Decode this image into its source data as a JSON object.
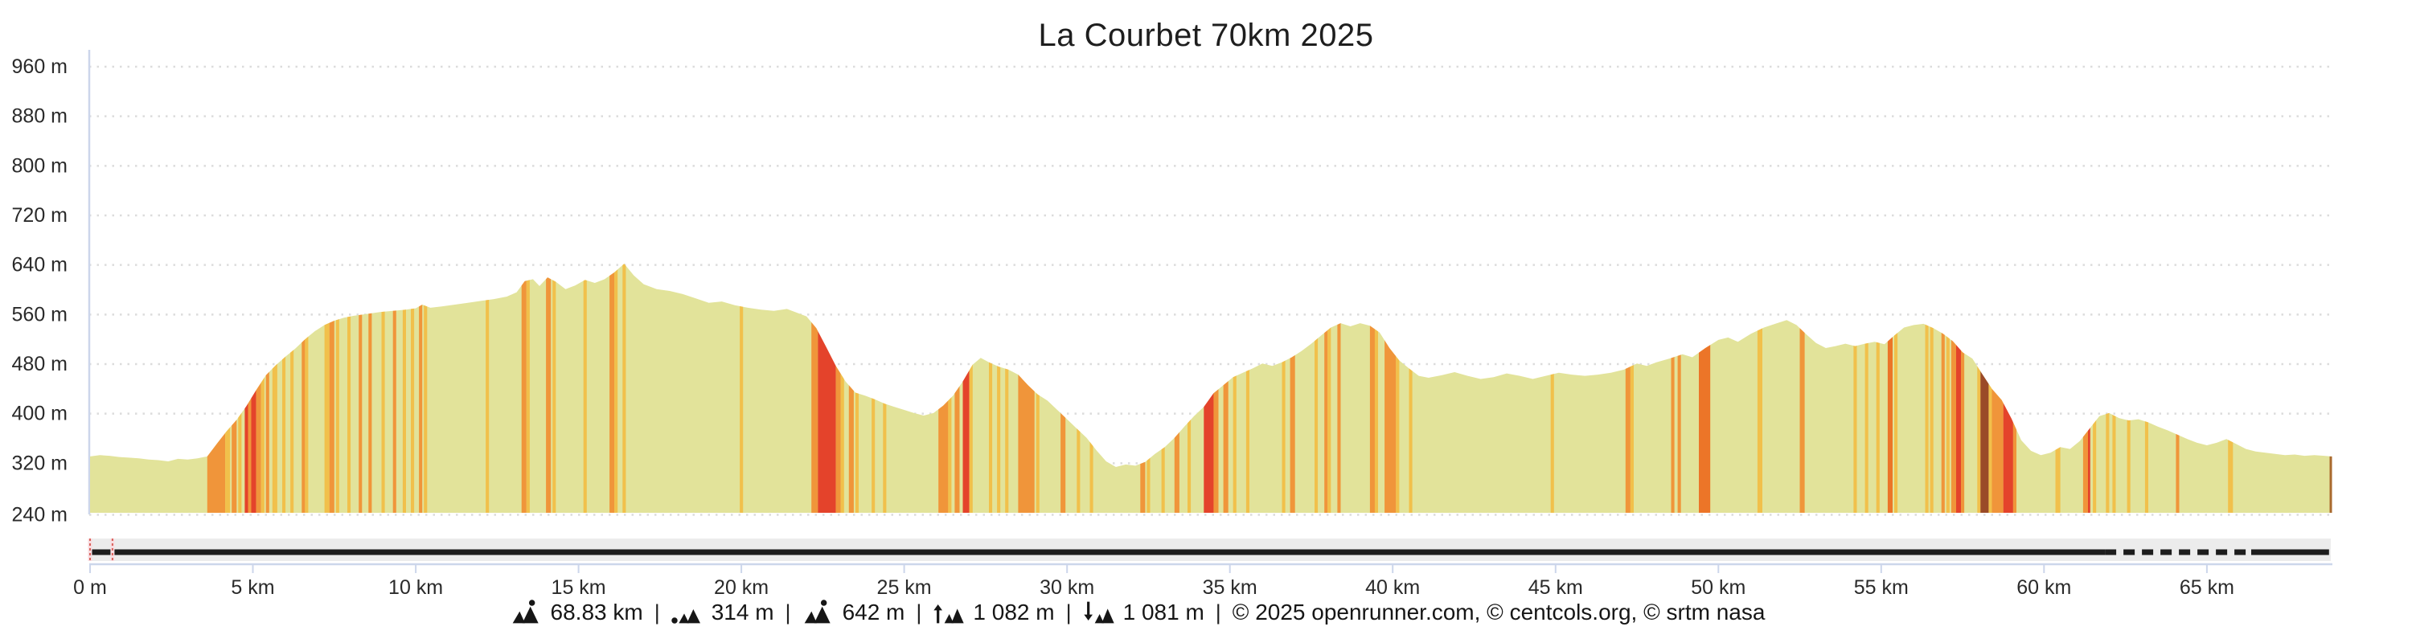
{
  "header": {
    "title": "La Courbet 70km 2025"
  },
  "chart_data": {
    "type": "area",
    "title": "La Courbet 70km 2025",
    "xlabel": "distance",
    "ylabel": "elevation",
    "x_unit": "km",
    "y_unit": "m",
    "x_range": [
      0,
      68.83
    ],
    "y_range": [
      240,
      960
    ],
    "grid": "horizontal-dotted",
    "legend": "none",
    "y_ticks": [
      {
        "value": 960,
        "label": "960 m"
      },
      {
        "value": 880,
        "label": "880 m"
      },
      {
        "value": 800,
        "label": "800 m"
      },
      {
        "value": 720,
        "label": "720 m"
      },
      {
        "value": 640,
        "label": "640 m"
      },
      {
        "value": 560,
        "label": "560 m"
      },
      {
        "value": 480,
        "label": "480 m"
      },
      {
        "value": 400,
        "label": "400 m"
      },
      {
        "value": 320,
        "label": "320 m"
      },
      {
        "value": 240,
        "label": "240 m"
      }
    ],
    "x_ticks": [
      {
        "value": 0,
        "label": "0 m"
      },
      {
        "value": 5,
        "label": "5 km"
      },
      {
        "value": 10,
        "label": "10 km"
      },
      {
        "value": 15,
        "label": "15 km"
      },
      {
        "value": 20,
        "label": "20 km"
      },
      {
        "value": 25,
        "label": "25 km"
      },
      {
        "value": 30,
        "label": "30 km"
      },
      {
        "value": 35,
        "label": "35 km"
      },
      {
        "value": 40,
        "label": "40 km"
      },
      {
        "value": 45,
        "label": "45 km"
      },
      {
        "value": 50,
        "label": "50 km"
      },
      {
        "value": 55,
        "label": "55 km"
      },
      {
        "value": 60,
        "label": "60 km"
      },
      {
        "value": 65,
        "label": "65 km"
      }
    ],
    "colors": {
      "area": "#e2e39a",
      "grid": "#dcdcdc",
      "axis": "#ccd6eb",
      "text": "#2a2a2a",
      "slope_amber": "#f1c04b",
      "slope_orange": "#f0953a",
      "slope_deep_orange": "#ec7528",
      "slope_red": "#e4432b",
      "slope_maroon": "#9a4a28",
      "navigator_track": "#ececec",
      "navigator_line": "#1d1d1d",
      "marker_pink": "#f8dde1",
      "marker_red": "#d9625c",
      "end_line": "#a96a2e"
    },
    "profile": [
      [
        0,
        331
      ],
      [
        0.3,
        333
      ],
      [
        0.6,
        332
      ],
      [
        0.9,
        330
      ],
      [
        1.2,
        329
      ],
      [
        1.5,
        328
      ],
      [
        1.8,
        326
      ],
      [
        2.1,
        325
      ],
      [
        2.4,
        323
      ],
      [
        2.7,
        327
      ],
      [
        3.0,
        326
      ],
      [
        3.3,
        328
      ],
      [
        3.6,
        331
      ],
      [
        3.9,
        352
      ],
      [
        4.2,
        372
      ],
      [
        4.5,
        390
      ],
      [
        4.8,
        412
      ],
      [
        5.1,
        438
      ],
      [
        5.4,
        462
      ],
      [
        5.7,
        478
      ],
      [
        6.0,
        492
      ],
      [
        6.3,
        505
      ],
      [
        6.6,
        520
      ],
      [
        6.9,
        533
      ],
      [
        7.2,
        543
      ],
      [
        7.5,
        550
      ],
      [
        7.8,
        555
      ],
      [
        8.1,
        558
      ],
      [
        8.5,
        561
      ],
      [
        8.9,
        564
      ],
      [
        9.3,
        566
      ],
      [
        9.7,
        568
      ],
      [
        10.0,
        570
      ],
      [
        10.2,
        576
      ],
      [
        10.45,
        571
      ],
      [
        10.8,
        573
      ],
      [
        11.2,
        576
      ],
      [
        11.6,
        579
      ],
      [
        12.0,
        582
      ],
      [
        12.4,
        585
      ],
      [
        12.8,
        589
      ],
      [
        13.1,
        596
      ],
      [
        13.35,
        614
      ],
      [
        13.6,
        617
      ],
      [
        13.8,
        606
      ],
      [
        14.05,
        620
      ],
      [
        14.3,
        613
      ],
      [
        14.6,
        601
      ],
      [
        14.9,
        607
      ],
      [
        15.2,
        616
      ],
      [
        15.5,
        611
      ],
      [
        15.8,
        617
      ],
      [
        16.1,
        628
      ],
      [
        16.4,
        642
      ],
      [
        16.7,
        623
      ],
      [
        17.0,
        609
      ],
      [
        17.4,
        601
      ],
      [
        17.8,
        598
      ],
      [
        18.2,
        593
      ],
      [
        18.6,
        586
      ],
      [
        19.0,
        579
      ],
      [
        19.4,
        581
      ],
      [
        19.8,
        575
      ],
      [
        20.2,
        571
      ],
      [
        20.6,
        568
      ],
      [
        21.0,
        566
      ],
      [
        21.4,
        569
      ],
      [
        21.7,
        563
      ],
      [
        22.0,
        557
      ],
      [
        22.3,
        538
      ],
      [
        22.6,
        508
      ],
      [
        22.9,
        477
      ],
      [
        23.2,
        452
      ],
      [
        23.5,
        434
      ],
      [
        23.8,
        429
      ],
      [
        24.1,
        423
      ],
      [
        24.4,
        416
      ],
      [
        24.7,
        411
      ],
      [
        25.0,
        406
      ],
      [
        25.3,
        401
      ],
      [
        25.6,
        397
      ],
      [
        25.9,
        401
      ],
      [
        26.2,
        413
      ],
      [
        26.5,
        429
      ],
      [
        26.8,
        452
      ],
      [
        27.1,
        479
      ],
      [
        27.35,
        490
      ],
      [
        27.6,
        483
      ],
      [
        27.9,
        476
      ],
      [
        28.2,
        471
      ],
      [
        28.5,
        463
      ],
      [
        28.8,
        446
      ],
      [
        29.1,
        431
      ],
      [
        29.4,
        421
      ],
      [
        29.7,
        406
      ],
      [
        30.0,
        391
      ],
      [
        30.3,
        376
      ],
      [
        30.6,
        361
      ],
      [
        30.9,
        341
      ],
      [
        31.2,
        323
      ],
      [
        31.5,
        314
      ],
      [
        31.8,
        318
      ],
      [
        32.1,
        316
      ],
      [
        32.4,
        322
      ],
      [
        32.7,
        335
      ],
      [
        33.0,
        346
      ],
      [
        33.3,
        361
      ],
      [
        33.6,
        379
      ],
      [
        33.9,
        396
      ],
      [
        34.2,
        411
      ],
      [
        34.5,
        433
      ],
      [
        34.8,
        446
      ],
      [
        35.1,
        459
      ],
      [
        35.4,
        466
      ],
      [
        35.7,
        473
      ],
      [
        36.0,
        481
      ],
      [
        36.3,
        477
      ],
      [
        36.6,
        483
      ],
      [
        36.9,
        491
      ],
      [
        37.2,
        501
      ],
      [
        37.5,
        513
      ],
      [
        37.8,
        526
      ],
      [
        38.1,
        539
      ],
      [
        38.4,
        546
      ],
      [
        38.7,
        541
      ],
      [
        39.0,
        546
      ],
      [
        39.3,
        542
      ],
      [
        39.6,
        531
      ],
      [
        39.9,
        506
      ],
      [
        40.2,
        486
      ],
      [
        40.5,
        473
      ],
      [
        40.8,
        461
      ],
      [
        41.1,
        458
      ],
      [
        41.5,
        462
      ],
      [
        41.9,
        467
      ],
      [
        42.3,
        461
      ],
      [
        42.7,
        456
      ],
      [
        43.1,
        459
      ],
      [
        43.5,
        465
      ],
      [
        43.9,
        461
      ],
      [
        44.3,
        456
      ],
      [
        44.7,
        461
      ],
      [
        45.1,
        466
      ],
      [
        45.5,
        463
      ],
      [
        45.9,
        461
      ],
      [
        46.3,
        463
      ],
      [
        46.7,
        466
      ],
      [
        47.1,
        471
      ],
      [
        47.5,
        481
      ],
      [
        47.8,
        477
      ],
      [
        48.1,
        483
      ],
      [
        48.5,
        489
      ],
      [
        48.9,
        496
      ],
      [
        49.2,
        491
      ],
      [
        49.6,
        506
      ],
      [
        50.0,
        519
      ],
      [
        50.3,
        523
      ],
      [
        50.6,
        516
      ],
      [
        51.0,
        529
      ],
      [
        51.4,
        539
      ],
      [
        51.8,
        546
      ],
      [
        52.1,
        551
      ],
      [
        52.4,
        543
      ],
      [
        52.7,
        528
      ],
      [
        53.0,
        514
      ],
      [
        53.3,
        506
      ],
      [
        53.6,
        509
      ],
      [
        53.9,
        513
      ],
      [
        54.2,
        509
      ],
      [
        54.5,
        513
      ],
      [
        54.8,
        516
      ],
      [
        55.1,
        512
      ],
      [
        55.4,
        526
      ],
      [
        55.7,
        539
      ],
      [
        56.0,
        543
      ],
      [
        56.3,
        545
      ],
      [
        56.6,
        538
      ],
      [
        56.9,
        529
      ],
      [
        57.2,
        517
      ],
      [
        57.5,
        499
      ],
      [
        57.8,
        489
      ],
      [
        58.1,
        464
      ],
      [
        58.4,
        440
      ],
      [
        58.7,
        422
      ],
      [
        59.0,
        392
      ],
      [
        59.3,
        357
      ],
      [
        59.6,
        340
      ],
      [
        59.9,
        333
      ],
      [
        60.2,
        337
      ],
      [
        60.5,
        346
      ],
      [
        60.8,
        343
      ],
      [
        61.1,
        356
      ],
      [
        61.4,
        376
      ],
      [
        61.7,
        396
      ],
      [
        62.0,
        401
      ],
      [
        62.3,
        393
      ],
      [
        62.6,
        389
      ],
      [
        62.9,
        391
      ],
      [
        63.2,
        386
      ],
      [
        63.5,
        379
      ],
      [
        63.8,
        373
      ],
      [
        64.1,
        366
      ],
      [
        64.4,
        359
      ],
      [
        64.7,
        353
      ],
      [
        65.0,
        349
      ],
      [
        65.3,
        353
      ],
      [
        65.6,
        359
      ],
      [
        65.9,
        351
      ],
      [
        66.2,
        343
      ],
      [
        66.5,
        339
      ],
      [
        66.8,
        337
      ],
      [
        67.1,
        335
      ],
      [
        67.4,
        333
      ],
      [
        67.7,
        334
      ],
      [
        68.0,
        332
      ],
      [
        68.3,
        333
      ],
      [
        68.6,
        332
      ],
      [
        68.83,
        331
      ]
    ],
    "slope_bands": [
      [
        3.6,
        4.15,
        "o"
      ],
      [
        4.15,
        4.3,
        "a"
      ],
      [
        4.35,
        4.5,
        "o"
      ],
      [
        4.55,
        4.65,
        "a"
      ],
      [
        4.75,
        4.85,
        "r"
      ],
      [
        4.85,
        4.95,
        "o"
      ],
      [
        4.95,
        5.1,
        "r"
      ],
      [
        5.1,
        5.25,
        "o"
      ],
      [
        5.25,
        5.35,
        "a"
      ],
      [
        5.4,
        5.5,
        "o"
      ],
      [
        5.6,
        5.75,
        "a"
      ],
      [
        5.9,
        6.0,
        "a"
      ],
      [
        6.15,
        6.25,
        "a"
      ],
      [
        6.5,
        6.6,
        "o"
      ],
      [
        6.6,
        6.7,
        "a"
      ],
      [
        7.2,
        7.35,
        "a"
      ],
      [
        7.35,
        7.5,
        "o"
      ],
      [
        7.55,
        7.65,
        "a"
      ],
      [
        7.9,
        8.0,
        "a"
      ],
      [
        8.25,
        8.35,
        "o"
      ],
      [
        8.55,
        8.65,
        "o"
      ],
      [
        8.95,
        9.05,
        "a"
      ],
      [
        9.3,
        9.4,
        "o"
      ],
      [
        9.6,
        9.7,
        "a"
      ],
      [
        9.85,
        9.95,
        "a"
      ],
      [
        10.1,
        10.2,
        "o"
      ],
      [
        10.25,
        10.35,
        "a"
      ],
      [
        12.15,
        12.25,
        "a"
      ],
      [
        13.25,
        13.4,
        "o"
      ],
      [
        13.4,
        13.5,
        "a"
      ],
      [
        14.0,
        14.15,
        "o"
      ],
      [
        14.2,
        14.3,
        "a"
      ],
      [
        15.15,
        15.25,
        "a"
      ],
      [
        15.95,
        16.1,
        "o"
      ],
      [
        16.1,
        16.2,
        "a"
      ],
      [
        16.35,
        16.45,
        "a"
      ],
      [
        19.95,
        20.05,
        "a"
      ],
      [
        22.15,
        22.35,
        "o"
      ],
      [
        22.35,
        22.9,
        "r"
      ],
      [
        22.9,
        23.05,
        "o"
      ],
      [
        23.05,
        23.15,
        "a"
      ],
      [
        23.3,
        23.45,
        "o"
      ],
      [
        23.5,
        23.6,
        "a"
      ],
      [
        24.0,
        24.1,
        "a"
      ],
      [
        24.35,
        24.45,
        "a"
      ],
      [
        26.05,
        26.35,
        "o"
      ],
      [
        26.35,
        26.45,
        "a"
      ],
      [
        26.55,
        26.7,
        "o"
      ],
      [
        26.8,
        27.0,
        "r"
      ],
      [
        27.0,
        27.1,
        "a"
      ],
      [
        27.6,
        27.7,
        "a"
      ],
      [
        27.85,
        27.95,
        "a"
      ],
      [
        28.1,
        28.2,
        "a"
      ],
      [
        28.5,
        29.0,
        "o"
      ],
      [
        29.05,
        29.15,
        "a"
      ],
      [
        29.8,
        29.95,
        "o"
      ],
      [
        30.3,
        30.4,
        "a"
      ],
      [
        30.7,
        30.8,
        "a"
      ],
      [
        32.25,
        32.4,
        "o"
      ],
      [
        32.45,
        32.55,
        "a"
      ],
      [
        32.9,
        33.0,
        "a"
      ],
      [
        33.3,
        33.45,
        "o"
      ],
      [
        33.7,
        33.8,
        "a"
      ],
      [
        34.2,
        34.5,
        "r"
      ],
      [
        34.5,
        34.65,
        "o"
      ],
      [
        34.8,
        34.95,
        "o"
      ],
      [
        35.1,
        35.2,
        "a"
      ],
      [
        35.5,
        35.6,
        "a"
      ],
      [
        36.6,
        36.7,
        "a"
      ],
      [
        36.85,
        37.0,
        "o"
      ],
      [
        37.6,
        37.7,
        "a"
      ],
      [
        37.9,
        38.0,
        "o"
      ],
      [
        38.0,
        38.1,
        "a"
      ],
      [
        38.3,
        38.4,
        "o"
      ],
      [
        39.3,
        39.45,
        "o"
      ],
      [
        39.45,
        39.55,
        "a"
      ],
      [
        39.75,
        40.1,
        "o"
      ],
      [
        40.1,
        40.2,
        "a"
      ],
      [
        40.5,
        40.6,
        "a"
      ],
      [
        44.85,
        44.95,
        "a"
      ],
      [
        47.15,
        47.3,
        "o"
      ],
      [
        47.3,
        47.4,
        "a"
      ],
      [
        48.55,
        48.65,
        "o"
      ],
      [
        48.75,
        48.85,
        "o"
      ],
      [
        49.4,
        49.75,
        "d"
      ],
      [
        51.2,
        51.35,
        "a"
      ],
      [
        52.5,
        52.65,
        "o"
      ],
      [
        54.15,
        54.25,
        "a"
      ],
      [
        54.5,
        54.6,
        "a"
      ],
      [
        54.85,
        54.95,
        "a"
      ],
      [
        55.2,
        55.35,
        "d"
      ],
      [
        55.4,
        55.5,
        "a"
      ],
      [
        56.35,
        56.45,
        "a"
      ],
      [
        56.5,
        56.6,
        "a"
      ],
      [
        56.85,
        56.95,
        "o"
      ],
      [
        57.0,
        57.1,
        "a"
      ],
      [
        57.15,
        57.3,
        "o"
      ],
      [
        57.3,
        57.45,
        "r"
      ],
      [
        57.45,
        57.55,
        "o"
      ],
      [
        57.95,
        58.05,
        "a"
      ],
      [
        58.05,
        58.3,
        "m"
      ],
      [
        58.3,
        58.4,
        "a"
      ],
      [
        58.4,
        58.75,
        "o"
      ],
      [
        58.75,
        59.05,
        "r"
      ],
      [
        59.05,
        59.15,
        "o"
      ],
      [
        60.35,
        60.5,
        "a"
      ],
      [
        61.2,
        61.35,
        "o"
      ],
      [
        61.35,
        61.42,
        "r"
      ],
      [
        61.5,
        61.6,
        "a"
      ],
      [
        61.9,
        62.0,
        "a"
      ],
      [
        62.1,
        62.2,
        "a"
      ],
      [
        62.55,
        62.65,
        "a"
      ],
      [
        63.1,
        63.2,
        "a"
      ],
      [
        64.05,
        64.15,
        "o"
      ],
      [
        65.65,
        65.8,
        "a"
      ]
    ],
    "surface_segments": [
      {
        "from_km": 0,
        "to_km": 61.87,
        "style": "solid"
      },
      {
        "from_km": 61.87,
        "to_km": 66.36,
        "style": "dashed"
      },
      {
        "from_km": 66.36,
        "to_km": 68.75,
        "style": "solid"
      }
    ],
    "range_handles_km": [
      0,
      0.69
    ]
  },
  "footer": {
    "separator": "|",
    "stats": [
      {
        "icon": "mountain-distance-icon",
        "value": "68.83 km"
      },
      {
        "icon": "mountain-min-elevation-icon",
        "value": "314 m"
      },
      {
        "icon": "mountain-max-elevation-icon",
        "value": "642 m"
      },
      {
        "icon": "mountain-ascent-icon",
        "value": "1 082 m"
      },
      {
        "icon": "mountain-descent-icon",
        "value": "1 081 m"
      }
    ],
    "copyright": "© 2025 openrunner.com, © centcols.org, © srtm nasa"
  }
}
